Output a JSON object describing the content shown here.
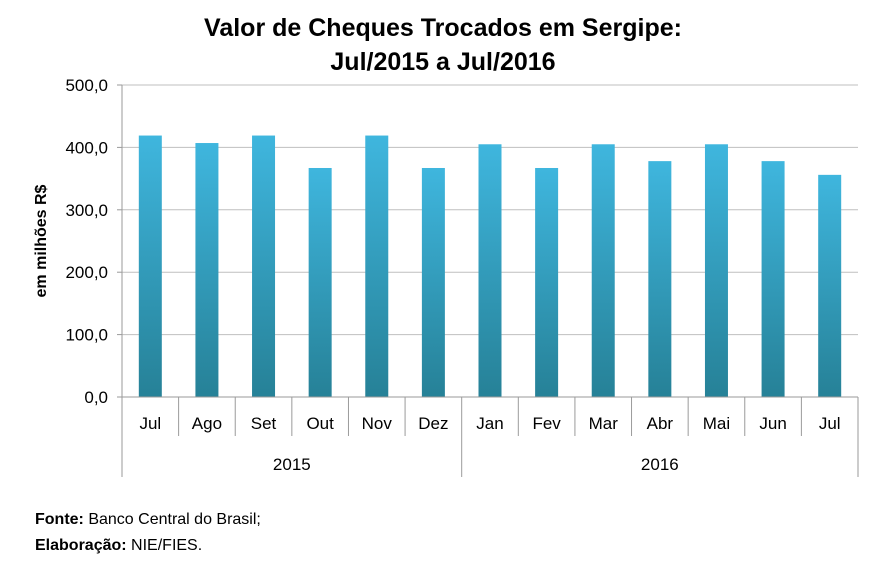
{
  "chart_data": {
    "type": "bar",
    "title": [
      "Valor de Cheques Trocados em Sergipe:",
      "Jul/2015 a Jul/2016"
    ],
    "ylabel": "em milhões R$",
    "xlabel": "",
    "ylim": [
      0,
      500
    ],
    "yticks": [
      "0,0",
      "100,0",
      "200,0",
      "300,0",
      "400,0",
      "500,0"
    ],
    "ytick_values": [
      0,
      100,
      200,
      300,
      400,
      500
    ],
    "grid": true,
    "categories": [
      "Jul",
      "Ago",
      "Set",
      "Out",
      "Nov",
      "Dez",
      "Jan",
      "Fev",
      "Mar",
      "Abr",
      "Mai",
      "Jun",
      "Jul"
    ],
    "groups": [
      {
        "label": "2015",
        "count": 6
      },
      {
        "label": "2016",
        "count": 7
      }
    ],
    "series": [
      {
        "name": "Valor de Cheques Trocados",
        "values": [
          419,
          407,
          419,
          367,
          419,
          367,
          405,
          367,
          405,
          378,
          405,
          378,
          356
        ]
      }
    ],
    "colors": {
      "bar_top": "#3fb6de",
      "bar_bottom": "#268197",
      "grid": "#bfbfbf",
      "axis": "#9a9a9a"
    }
  },
  "footer": {
    "source_label": "Fonte:",
    "source_value": "Banco Central do Brasil;",
    "credit_label": "Elaboração:",
    "credit_value": "NIE/FIES."
  }
}
